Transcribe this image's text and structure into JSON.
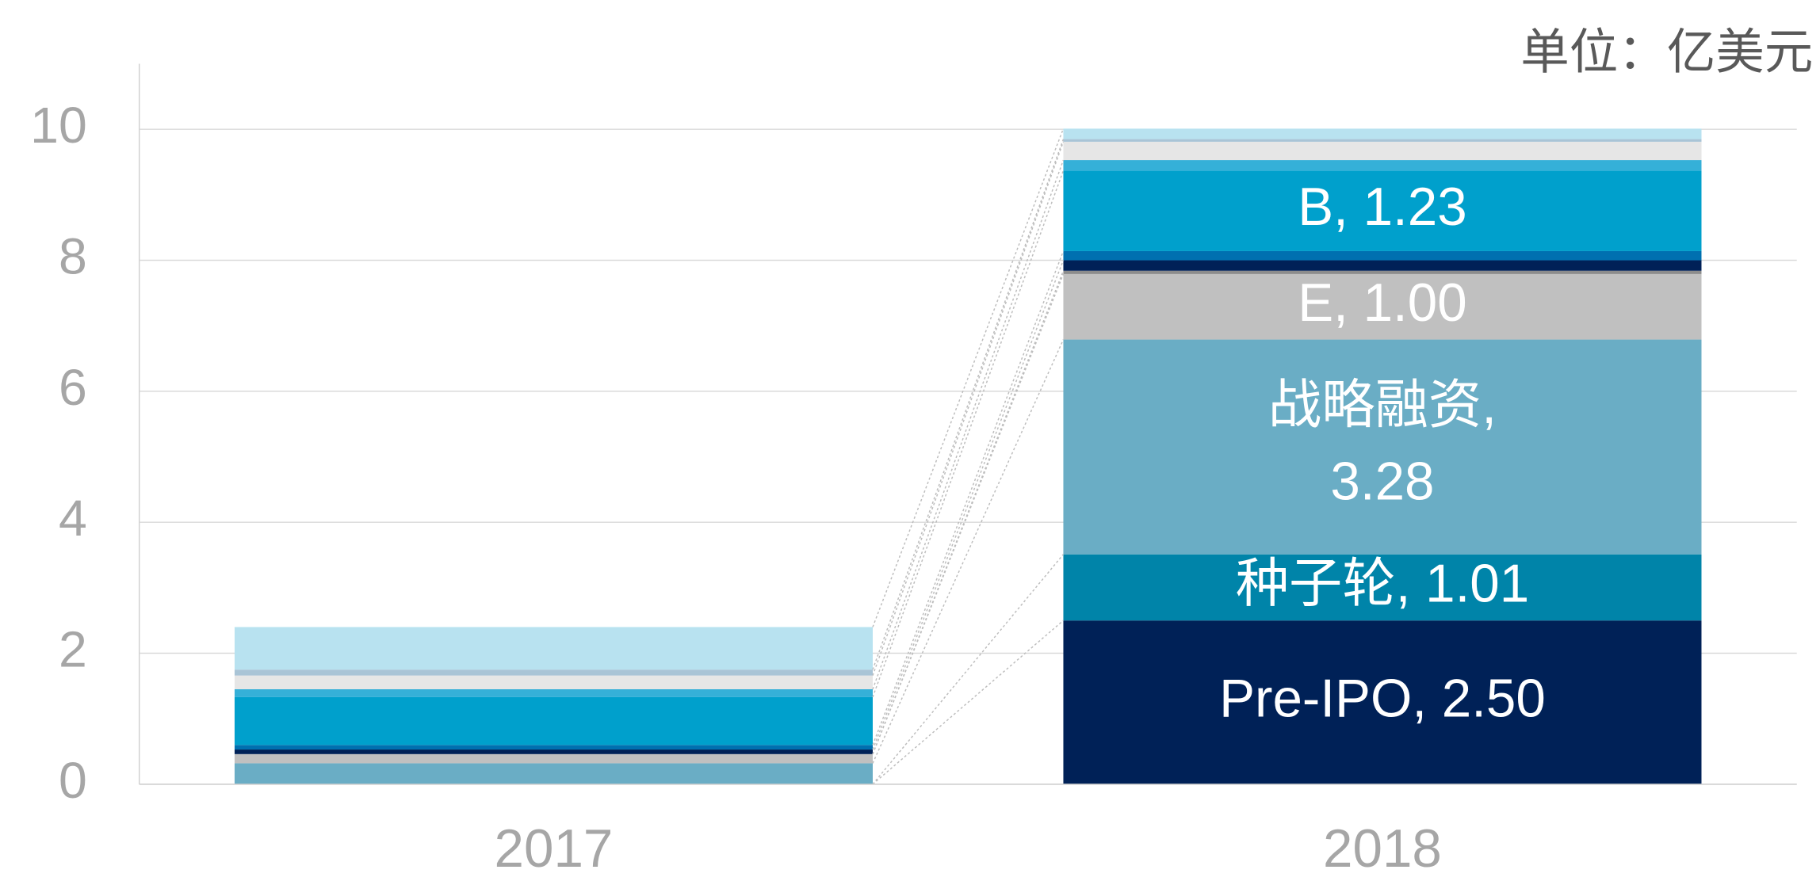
{
  "chart_data": {
    "type": "stacked_bar",
    "unit": "单位：亿美元",
    "categories": [
      "2017",
      "2018"
    ],
    "series": [
      {
        "color": "#002157",
        "values": [
          0,
          2.5
        ],
        "value_labels": [
          null,
          "Pre-IPO, 2.50"
        ]
      },
      {
        "color": "#0084a9",
        "values": [
          0,
          1.01
        ],
        "value_labels": [
          null,
          "种子轮, 1.01"
        ]
      },
      {
        "color": "#6aadc5",
        "values": [
          0.32,
          3.28
        ],
        "value_labels": [
          null,
          "战略融资,\n3.28"
        ]
      },
      {
        "color": "#c0c0c0",
        "values": [
          0.14,
          1.0
        ],
        "value_labels": [
          null,
          "E, 1.00"
        ]
      },
      {
        "color": "#8c8c8c",
        "values": [
          0,
          0.05
        ]
      },
      {
        "color": "#002157",
        "values": [
          0.07,
          0.16
        ]
      },
      {
        "color": "#0070b0",
        "values": [
          0.07,
          0.14
        ]
      },
      {
        "color": "#00a0cc",
        "values": [
          0.73,
          1.23
        ],
        "value_labels": [
          null,
          "B, 1.23"
        ]
      },
      {
        "color": "#35b0d8",
        "values": [
          0.12,
          0.16
        ]
      },
      {
        "color": "#e6e6e6",
        "values": [
          0.21,
          0.28
        ]
      },
      {
        "color": "#a9c4d6",
        "values": [
          0.09,
          0.04
        ]
      },
      {
        "color": "#b8e2f0",
        "values": [
          0.65,
          0.16
        ]
      }
    ],
    "ylim": [
      0,
      11
    ],
    "yticks": [
      0,
      2,
      4,
      6,
      8,
      10
    ],
    "grid": true
  }
}
